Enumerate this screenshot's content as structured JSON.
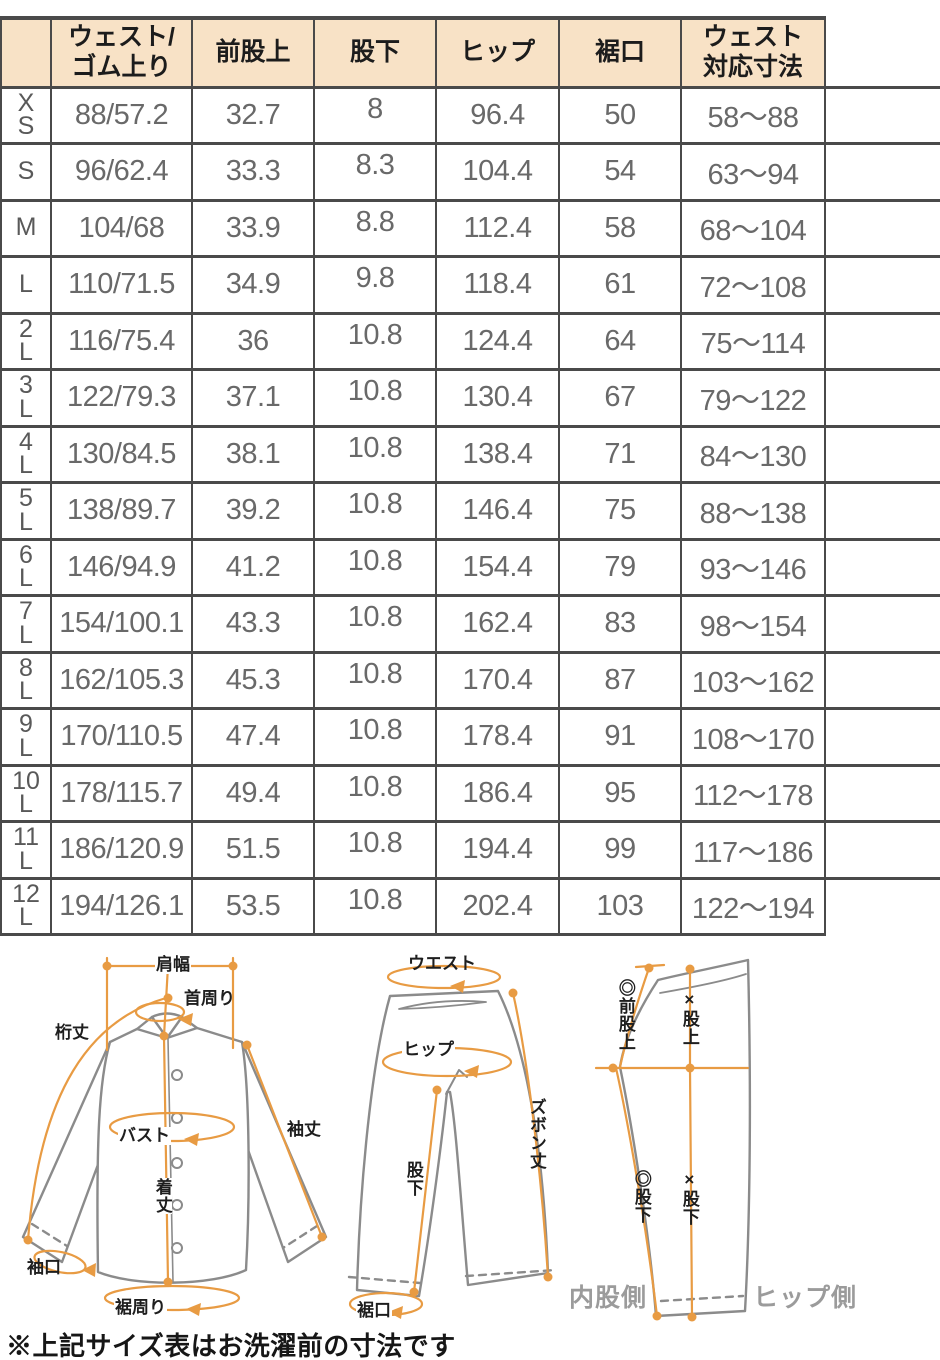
{
  "colors": {
    "header_bg": "#f8e2c6",
    "table_border": "#4a4a4a",
    "cell_text": "#696969",
    "header_text": "#1c1c1c",
    "measure_orange": "#e89b43",
    "garment_gray": "#8b8b8b",
    "side_label_gray": "#9b9b9b"
  },
  "table": {
    "headers": [
      "",
      "ウェスト/\nゴム上り",
      "前股上",
      "股下",
      "ヒップ",
      "裾口",
      "ウェスト\n対応寸法",
      ""
    ],
    "rows": [
      {
        "size": "X\nS",
        "values": [
          "88/57.2",
          "32.7",
          "8",
          "96.4",
          "50",
          "58〜88",
          ""
        ]
      },
      {
        "size": "S",
        "values": [
          "96/62.4",
          "33.3",
          "8.3",
          "104.4",
          "54",
          "63〜94",
          ""
        ]
      },
      {
        "size": "M",
        "values": [
          "104/68",
          "33.9",
          "8.8",
          "112.4",
          "58",
          "68〜104",
          ""
        ]
      },
      {
        "size": "L",
        "values": [
          "110/71.5",
          "34.9",
          "9.8",
          "118.4",
          "61",
          "72〜108",
          ""
        ]
      },
      {
        "size": "2\nL",
        "values": [
          "116/75.4",
          "36",
          "10.8",
          "124.4",
          "64",
          "75〜114",
          ""
        ]
      },
      {
        "size": "3\nL",
        "values": [
          "122/79.3",
          "37.1",
          "10.8",
          "130.4",
          "67",
          "79〜122",
          ""
        ]
      },
      {
        "size": "4\nL",
        "values": [
          "130/84.5",
          "38.1",
          "10.8",
          "138.4",
          "71",
          "84〜130",
          ""
        ]
      },
      {
        "size": "5\nL",
        "values": [
          "138/89.7",
          "39.2",
          "10.8",
          "146.4",
          "75",
          "88〜138",
          ""
        ]
      },
      {
        "size": "6\nL",
        "values": [
          "146/94.9",
          "41.2",
          "10.8",
          "154.4",
          "79",
          "93〜146",
          ""
        ]
      },
      {
        "size": "7\nL",
        "values": [
          "154/100.1",
          "43.3",
          "10.8",
          "162.4",
          "83",
          "98〜154",
          ""
        ]
      },
      {
        "size": "8\nL",
        "values": [
          "162/105.3",
          "45.3",
          "10.8",
          "170.4",
          "87",
          "103〜162",
          ""
        ]
      },
      {
        "size": "9\nL",
        "values": [
          "170/110.5",
          "47.4",
          "10.8",
          "178.4",
          "91",
          "108〜170",
          ""
        ]
      },
      {
        "size": "10\nL",
        "values": [
          "178/115.7",
          "49.4",
          "10.8",
          "186.4",
          "95",
          "112〜178",
          ""
        ]
      },
      {
        "size": "11\nL",
        "values": [
          "186/120.9",
          "51.5",
          "10.8",
          "194.4",
          "99",
          "117〜186",
          ""
        ]
      },
      {
        "size": "12\nL",
        "values": [
          "194/126.1",
          "53.5",
          "10.8",
          "202.4",
          "103",
          "122〜194",
          ""
        ]
      }
    ]
  },
  "diagrams": {
    "shirt": {
      "shoulder_width": "肩幅",
      "neck_around": "首周り",
      "yuki_length": "桁丈",
      "bust": "バスト",
      "sleeve_length": "袖丈",
      "body_length": "着丈",
      "cuff": "袖口",
      "hem_around": "裾周り"
    },
    "pants": {
      "waist": "ウエスト",
      "hip": "ヒップ",
      "inseam": "股下",
      "pants_length": "ズボン丈",
      "hem": "裾口"
    },
    "side": {
      "front_rise": "◎前股上",
      "x_rise": "×股上",
      "o_inseam": "◎股下",
      "x_inseam": "×股下",
      "inner_side": "内股側",
      "hip_side": "ヒップ側"
    }
  },
  "footnote": "※上記サイズ表はお洗濯前の寸法です"
}
